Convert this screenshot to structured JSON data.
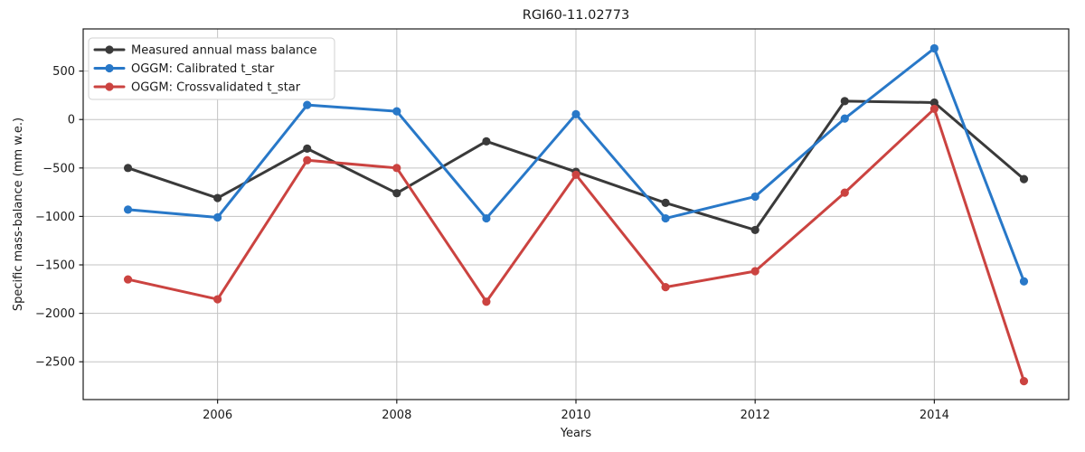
{
  "figure": {
    "background": "#ffffff",
    "text_color": "#1a1a1a",
    "grid_color": "#c3c3c3",
    "spine_color": "#1a1a1a",
    "legend_border_color": "#d0d0d0"
  },
  "chart_data": {
    "type": "line",
    "title": "RGI60-11.02773",
    "xlabel": "Years",
    "ylabel": "Specific mass-balance (mm w.e.)",
    "x": [
      2005,
      2006,
      2007,
      2008,
      2009,
      2010,
      2011,
      2012,
      2013,
      2014,
      2015
    ],
    "xticks": [
      2006,
      2008,
      2010,
      2012,
      2014
    ],
    "yticks": [
      500,
      0,
      -500,
      -1000,
      -1500,
      -2000,
      -2500
    ],
    "xlim": [
      2004.5,
      2015.5
    ],
    "ylim": [
      -2890,
      935
    ],
    "grid": true,
    "legend_position": "upper left",
    "line_width": 3,
    "marker": "circle",
    "series": [
      {
        "name": "Measured annual mass balance",
        "color": "#3a3a3a",
        "values": [
          -500,
          -810,
          -300,
          -760,
          -225,
          -540,
          -860,
          -1140,
          190,
          175,
          -615
        ]
      },
      {
        "name": "OGGM: Calibrated t_star",
        "color": "#2878c8",
        "values": [
          -930,
          -1010,
          150,
          85,
          -1020,
          55,
          -1020,
          -795,
          10,
          735,
          -1670
        ]
      },
      {
        "name": "OGGM: Crossvalidated t_star",
        "color": "#cb4340",
        "values": [
          -1650,
          -1855,
          -420,
          -500,
          -1880,
          -570,
          -1730,
          -1565,
          -755,
          110,
          -2700
        ]
      }
    ]
  }
}
